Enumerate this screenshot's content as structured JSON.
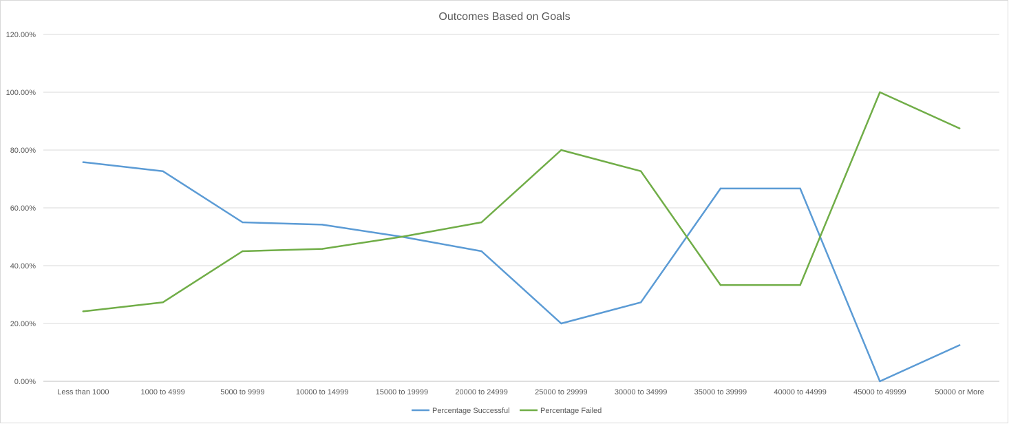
{
  "chart_data": {
    "type": "line",
    "title": "Outcomes Based on Goals",
    "xlabel": "",
    "ylabel": "",
    "categories": [
      "Less than 1000",
      "1000 to 4999",
      "5000 to 9999",
      "10000 to 14999",
      "15000 to 19999",
      "20000 to 24999",
      "25000 to 29999",
      "30000 to 34999",
      "35000 to 39999",
      "40000 to 44999",
      "45000 to 49999",
      "50000 or More"
    ],
    "series": [
      {
        "name": "Percentage Successful",
        "color": "#5b9bd5",
        "values": [
          75.8,
          72.7,
          55.0,
          54.2,
          50.0,
          45.0,
          20.0,
          27.3,
          66.7,
          66.7,
          0.0,
          12.5
        ]
      },
      {
        "name": "Percentage Failed",
        "color": "#70ad47",
        "values": [
          24.2,
          27.3,
          45.0,
          45.8,
          50.0,
          55.0,
          80.0,
          72.7,
          33.3,
          33.3,
          100.0,
          87.5
        ]
      }
    ],
    "ylim": [
      0,
      120
    ],
    "yticks": [
      0,
      20,
      40,
      60,
      80,
      100,
      120
    ],
    "ytick_labels": [
      "0.00%",
      "20.00%",
      "40.00%",
      "60.00%",
      "80.00%",
      "100.00%",
      "120.00%"
    ],
    "grid": true,
    "legend_position": "bottom"
  }
}
